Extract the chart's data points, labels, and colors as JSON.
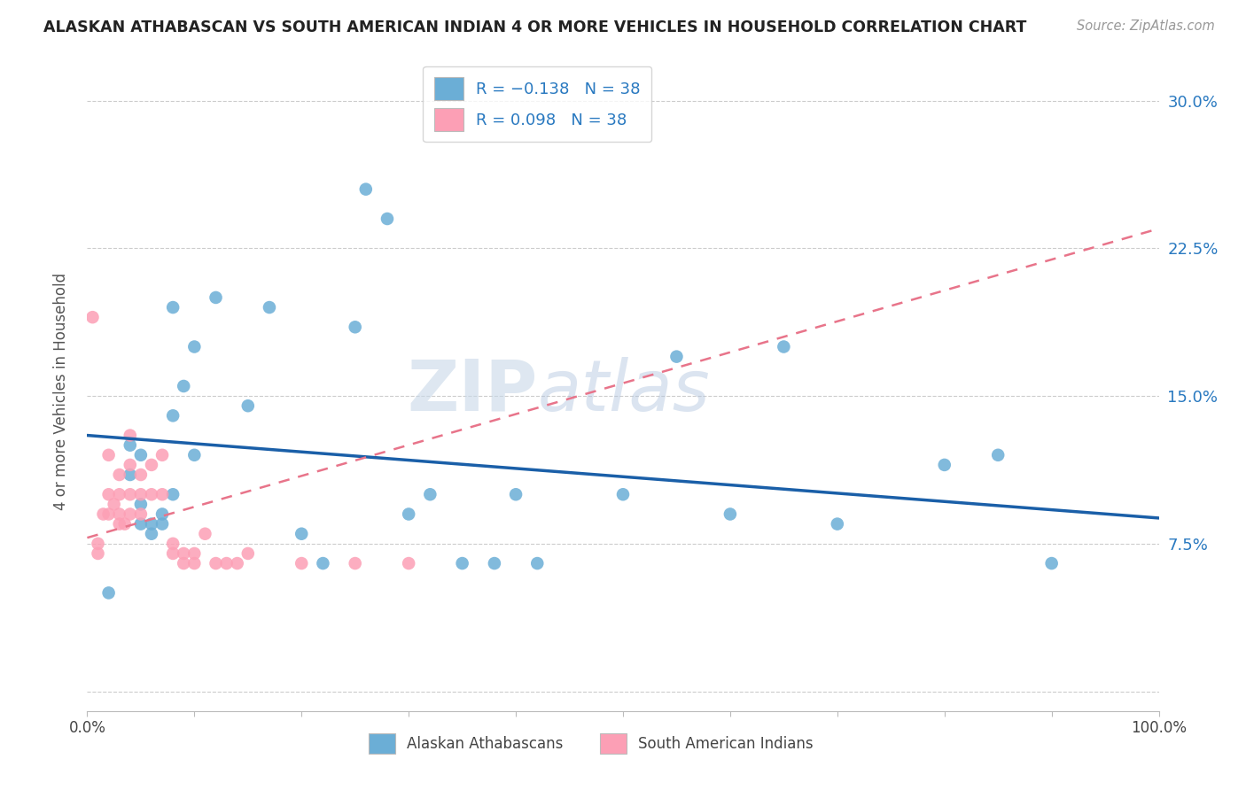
{
  "title": "ALASKAN ATHABASCAN VS SOUTH AMERICAN INDIAN 4 OR MORE VEHICLES IN HOUSEHOLD CORRELATION CHART",
  "source": "Source: ZipAtlas.com",
  "ylabel": "4 or more Vehicles in Household",
  "xlim": [
    0.0,
    1.0
  ],
  "ylim": [
    -0.01,
    0.315
  ],
  "yticks": [
    0.0,
    0.075,
    0.15,
    0.225,
    0.3
  ],
  "ytick_labels": [
    "",
    "7.5%",
    "15.0%",
    "22.5%",
    "30.0%"
  ],
  "xtick_vals": [
    0.0,
    0.1,
    0.2,
    0.3,
    0.4,
    0.5,
    0.6,
    0.7,
    0.8,
    0.9,
    1.0
  ],
  "xtick_labels": [
    "0.0%",
    "",
    "",
    "",
    "",
    "",
    "",
    "",
    "",
    "",
    "100.0%"
  ],
  "legend_label1": "Alaskan Athabascans",
  "legend_label2": "South American Indians",
  "blue_color": "#6baed6",
  "pink_color": "#fc9fb5",
  "trend_blue_color": "#1a5fa8",
  "trend_pink_color": "#e8748a",
  "watermark": "ZIPatlas",
  "blue_x": [
    0.02,
    0.04,
    0.04,
    0.05,
    0.05,
    0.05,
    0.06,
    0.06,
    0.07,
    0.07,
    0.08,
    0.08,
    0.08,
    0.09,
    0.1,
    0.1,
    0.12,
    0.15,
    0.17,
    0.2,
    0.22,
    0.25,
    0.26,
    0.28,
    0.3,
    0.32,
    0.35,
    0.38,
    0.4,
    0.42,
    0.5,
    0.55,
    0.6,
    0.65,
    0.7,
    0.8,
    0.85,
    0.9
  ],
  "blue_y": [
    0.05,
    0.11,
    0.125,
    0.12,
    0.095,
    0.085,
    0.085,
    0.08,
    0.085,
    0.09,
    0.1,
    0.195,
    0.14,
    0.155,
    0.12,
    0.175,
    0.2,
    0.145,
    0.195,
    0.08,
    0.065,
    0.185,
    0.255,
    0.24,
    0.09,
    0.1,
    0.065,
    0.065,
    0.1,
    0.065,
    0.1,
    0.17,
    0.09,
    0.175,
    0.085,
    0.115,
    0.12,
    0.065
  ],
  "pink_x": [
    0.005,
    0.01,
    0.01,
    0.015,
    0.02,
    0.02,
    0.02,
    0.025,
    0.03,
    0.03,
    0.03,
    0.03,
    0.035,
    0.04,
    0.04,
    0.04,
    0.04,
    0.05,
    0.05,
    0.05,
    0.06,
    0.06,
    0.07,
    0.07,
    0.08,
    0.08,
    0.09,
    0.09,
    0.1,
    0.1,
    0.11,
    0.12,
    0.13,
    0.14,
    0.15,
    0.2,
    0.25,
    0.3
  ],
  "pink_y": [
    0.19,
    0.07,
    0.075,
    0.09,
    0.09,
    0.1,
    0.12,
    0.095,
    0.085,
    0.09,
    0.1,
    0.11,
    0.085,
    0.09,
    0.1,
    0.115,
    0.13,
    0.09,
    0.1,
    0.11,
    0.1,
    0.115,
    0.1,
    0.12,
    0.07,
    0.075,
    0.065,
    0.07,
    0.065,
    0.07,
    0.08,
    0.065,
    0.065,
    0.065,
    0.07,
    0.065,
    0.065,
    0.065
  ],
  "blue_trend_x0": 0.0,
  "blue_trend_y0": 0.13,
  "blue_trend_x1": 1.0,
  "blue_trend_y1": 0.088,
  "pink_trend_x0": 0.0,
  "pink_trend_y0": 0.078,
  "pink_trend_x1": 1.0,
  "pink_trend_y1": 0.235
}
